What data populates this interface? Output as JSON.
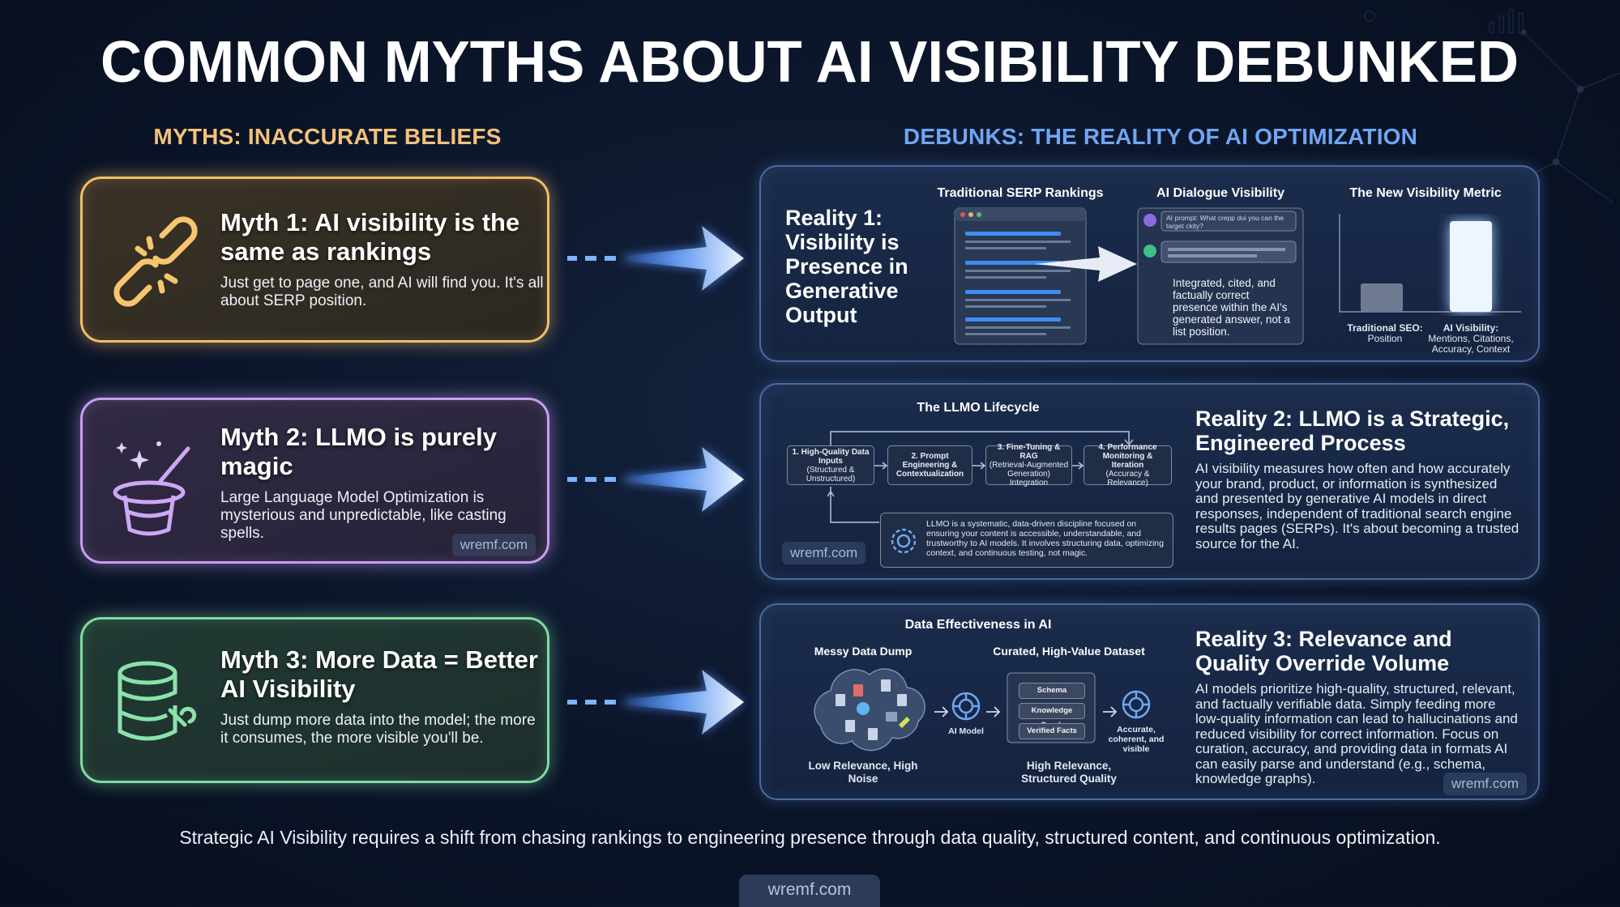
{
  "title": "COMMON MYTHS ABOUT AI VISIBILITY DEBUNKED",
  "myths_heading": "MYTHS: INACCURATE BELIEFS",
  "debunks_heading": "DEBUNKS: THE REALITY OF AI OPTIMIZATION",
  "myths": [
    {
      "title": "Myth 1: AI visibility is the same as rankings",
      "text": "Just get to page one, and AI will find you. It's all about SERP position."
    },
    {
      "title": "Myth 2: LLMO is purely magic",
      "text": "Large Language Model Optimization is mysterious and unpredictable, like casting spells.",
      "watermark": "wremf.com"
    },
    {
      "title": "Myth 3: More Data = Better AI Visibility",
      "text": "Just dump more data into the model; the more it consumes, the more visible you'll be."
    }
  ],
  "realities": [
    {
      "title": "Reality 1: Visibility is Presence in Generative Output",
      "serp_label": "Traditional SERP Rankings",
      "dialogue_label": "AI Dialogue Visibility",
      "prompt": "AI prompt: What crepp dui you can the target ckity?",
      "answer": "Integrated, cited, and factually correct presence within the AI's generated answer, not a list position.",
      "metric_label": "The New Visibility Metric",
      "bar_labels": [
        {
          "title": "Traditional SEO:",
          "text": "Position"
        },
        {
          "title": "AI Visibility:",
          "text": "Mentions, Citations, Accuracy, Context"
        }
      ]
    },
    {
      "title": "Reality 2: LLMO is a Strategic, Engineered Process",
      "text": "AI visibility measures how often and how accurately your brand, product, or information is synthesized and presented by generative AI models in direct responses, independent of traditional search engine results pages (SERPs). It's about becoming a trusted source for the AI.",
      "diagram_title": "The LLMO Lifecycle",
      "steps": [
        {
          "title": "1. High-Quality Data Inputs",
          "text": "(Structured & Unstructured)"
        },
        {
          "title": "2. Prompt Engineering & Contextualization",
          "text": ""
        },
        {
          "title": "3. Fine-Tuning & RAG",
          "text": "(Retrieval-Augmented Generation) Integration"
        },
        {
          "title": "4. Performance Monitoring & Iteration",
          "text": "(Accuracy & Relevance)"
        }
      ],
      "note": "LLMO is a systematic, data-driven discipline focused on ensuring your content is accessible, understandable, and trustworthy to AI models. It involves structuring data, optimizing context, and continuous testing, not magic.",
      "watermark": "wremf.com"
    },
    {
      "title": "Reality 3: Relevance and Quality Override Volume",
      "text": "AI models prioritize high-quality, structured, relevant, and factually verifiable data. Simply feeding more low-quality information can lead to hallucinations and reduced visibility for correct information. Focus on curation, accuracy, and providing data in formats AI can easily parse and understand (e.g., schema, knowledge graphs).",
      "diagram_title": "Data Effectiveness in AI",
      "messy_label": "Messy Data Dump",
      "curated_label": "Curated, High-Value Dataset",
      "model_label": "AI Model",
      "dataset_items": [
        "Schema",
        "Knowledge Graph",
        "Verified Facts"
      ],
      "outcome": "Accurate, coherent, and visible",
      "messy_caption": "Low Relevance, High Noise",
      "curated_caption": "High Relevance, Structured Quality",
      "watermark": "wremf.com"
    }
  ],
  "footer": "Strategic AI Visibility requires a shift from chasing rankings to engineering presence through data quality, structured content, and continuous optimization.",
  "footer_watermark": "wremf.com"
}
